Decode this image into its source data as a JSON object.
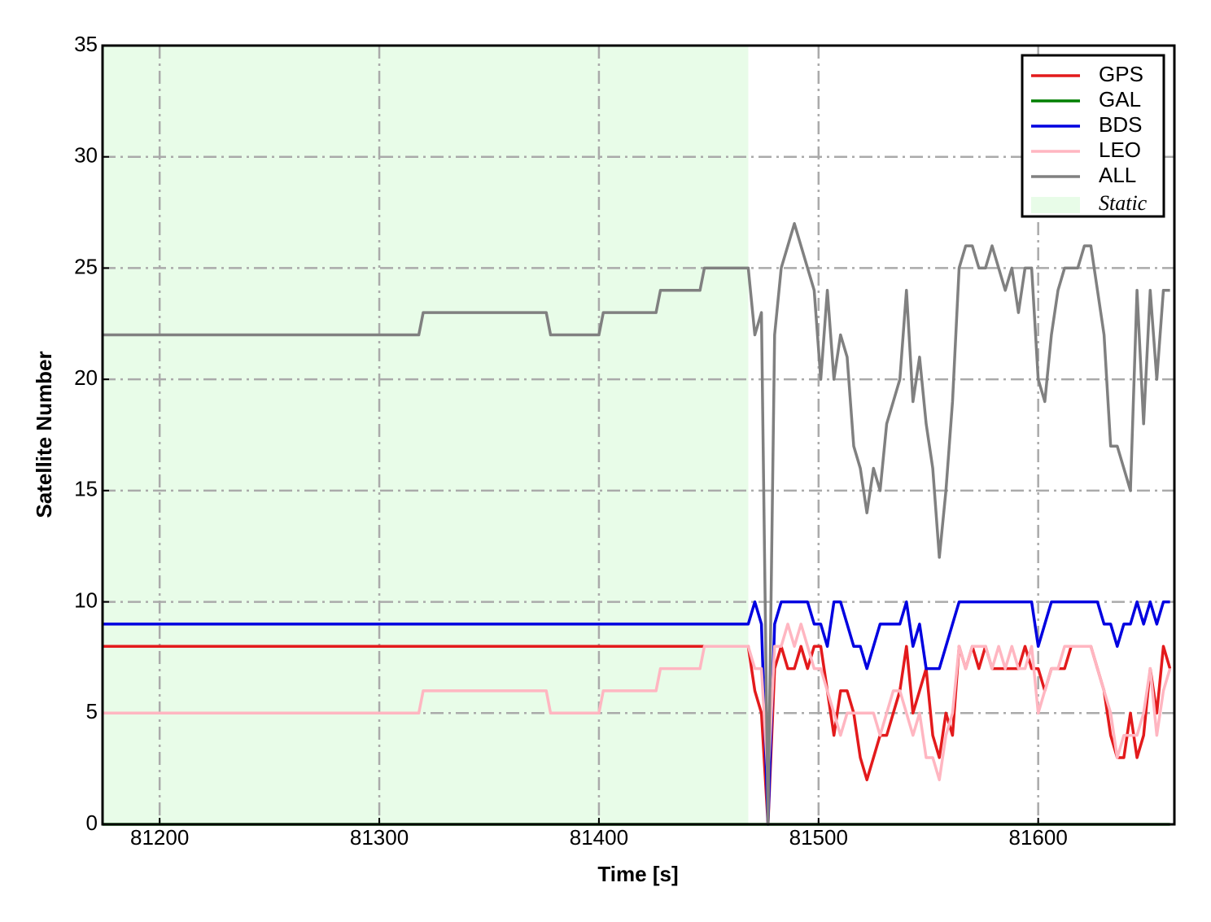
{
  "chart_data": {
    "type": "line",
    "xlabel": "Time [s]",
    "ylabel": "Satellite Number",
    "xlim": [
      81174,
      81662
    ],
    "ylim": [
      0,
      35
    ],
    "xticks": [
      81200,
      81300,
      81400,
      81500,
      81600
    ],
    "yticks": [
      0,
      5,
      10,
      15,
      20,
      25,
      30,
      35
    ],
    "grid": true,
    "legend": "upper right",
    "span": {
      "name": "Static",
      "color": "#e8fce8",
      "x0": 81174,
      "x1": 81468
    },
    "x": [
      81174,
      81318,
      81320,
      81376,
      81378,
      81400,
      81402,
      81426,
      81428,
      81446,
      81448,
      81468,
      81471,
      81474,
      81477,
      81480,
      81483,
      81486,
      81489,
      81492,
      81495,
      81498,
      81501,
      81504,
      81507,
      81510,
      81513,
      81516,
      81519,
      81522,
      81525,
      81528,
      81531,
      81534,
      81537,
      81540,
      81543,
      81546,
      81549,
      81552,
      81555,
      81558,
      81561,
      81564,
      81567,
      81570,
      81573,
      81576,
      81579,
      81582,
      81585,
      81588,
      81591,
      81594,
      81597,
      81600,
      81603,
      81606,
      81609,
      81612,
      81615,
      81618,
      81621,
      81624,
      81627,
      81630,
      81633,
      81636,
      81639,
      81642,
      81645,
      81648,
      81651,
      81654,
      81657,
      81660
    ],
    "series": [
      {
        "name": "GPS",
        "color": "#e31a1c",
        "values": [
          8,
          8,
          8,
          8,
          8,
          8,
          8,
          8,
          8,
          8,
          8,
          8,
          6,
          5,
          0,
          7,
          8,
          7,
          7,
          8,
          7,
          8,
          8,
          6,
          4,
          6,
          6,
          5,
          3,
          2,
          3,
          4,
          4,
          5,
          6,
          8,
          5,
          6,
          7,
          4,
          3,
          5,
          4,
          8,
          7,
          8,
          7,
          8,
          7,
          7,
          7,
          7,
          7,
          8,
          7,
          7,
          6,
          7,
          7,
          7,
          8,
          8,
          8,
          8,
          7,
          6,
          4,
          3,
          3,
          5,
          3,
          4,
          7,
          5,
          8,
          7
        ]
      },
      {
        "name": "GAL",
        "color": "#007f00",
        "values": [
          0,
          0,
          0,
          0,
          0,
          0,
          0,
          0,
          0,
          0,
          0,
          0,
          0,
          0,
          0,
          0,
          0,
          0,
          0,
          0,
          0,
          0,
          0,
          0,
          0,
          0,
          0,
          0,
          0,
          0,
          0,
          0,
          0,
          0,
          0,
          0,
          0,
          0,
          0,
          0,
          0,
          0,
          0,
          0,
          0,
          0,
          0,
          0,
          0,
          0,
          0,
          0,
          0,
          0,
          0,
          0,
          0,
          0,
          0,
          0,
          0,
          0,
          0,
          0,
          0,
          0,
          0,
          0,
          0,
          0,
          0,
          0,
          0,
          0,
          0,
          0
        ]
      },
      {
        "name": "BDS",
        "color": "#0000e0",
        "values": [
          9,
          9,
          9,
          9,
          9,
          9,
          9,
          9,
          9,
          9,
          9,
          9,
          10,
          9,
          0,
          9,
          10,
          10,
          10,
          10,
          10,
          9,
          9,
          8,
          10,
          10,
          9,
          8,
          8,
          7,
          8,
          9,
          9,
          9,
          9,
          10,
          8,
          9,
          7,
          7,
          7,
          8,
          9,
          10,
          10,
          10,
          10,
          10,
          10,
          10,
          10,
          10,
          10,
          10,
          10,
          8,
          9,
          10,
          10,
          10,
          10,
          10,
          10,
          10,
          10,
          9,
          9,
          8,
          9,
          9,
          10,
          9,
          10,
          9,
          10,
          10
        ]
      },
      {
        "name": "LEO",
        "color": "#ffb6c1",
        "values": [
          5,
          5,
          6,
          6,
          5,
          5,
          6,
          6,
          7,
          7,
          8,
          8,
          7,
          7,
          2,
          8,
          8,
          9,
          8,
          9,
          8,
          7,
          7,
          6,
          5,
          4,
          5,
          5,
          5,
          5,
          5,
          4,
          5,
          6,
          6,
          5,
          4,
          5,
          3,
          3,
          2,
          4,
          5,
          8,
          7,
          8,
          8,
          8,
          7,
          8,
          7,
          8,
          7,
          7,
          8,
          5,
          6,
          7,
          7,
          8,
          8,
          8,
          8,
          8,
          7,
          6,
          5,
          3,
          4,
          4,
          4,
          5,
          7,
          4,
          6,
          7
        ]
      },
      {
        "name": "ALL",
        "color": "#808080",
        "values": [
          22,
          22,
          23,
          23,
          22,
          22,
          23,
          23,
          24,
          24,
          25,
          25,
          22,
          23,
          0,
          22,
          25,
          26,
          27,
          26,
          25,
          24,
          20,
          24,
          20,
          22,
          21,
          17,
          16,
          14,
          16,
          15,
          18,
          19,
          20,
          24,
          19,
          21,
          18,
          16,
          12,
          15,
          19,
          25,
          26,
          26,
          25,
          25,
          26,
          25,
          24,
          25,
          23,
          25,
          25,
          20,
          19,
          22,
          24,
          25,
          25,
          25,
          26,
          26,
          24,
          22,
          17,
          17,
          16,
          15,
          24,
          18,
          24,
          20,
          24,
          24
        ]
      }
    ]
  }
}
